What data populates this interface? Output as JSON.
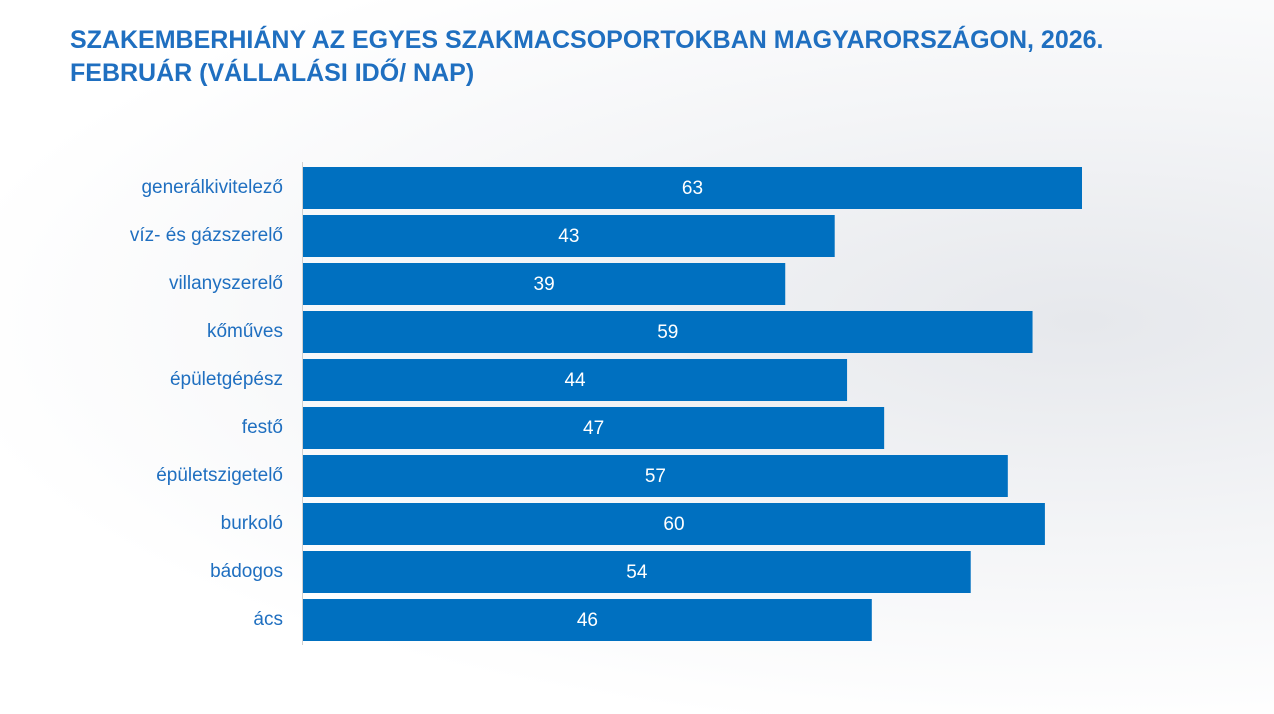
{
  "chart_data": {
    "type": "bar",
    "orientation": "horizontal",
    "title": "SZAKEMBERHIÁNY AZ EGYES SZAKMACSOPORTOKBAN MAGYARORSZÁGON, 2026. FEBRUÁR (VÁLLALÁSI IDŐ/ NAP)",
    "categories": [
      "generálkivitelező",
      "víz- és gázszerelő",
      "villanyszerelő",
      "kőműves",
      "épületgépész",
      "festő",
      "épületszigetelő",
      "burkoló",
      "bádogos",
      "ács"
    ],
    "values": [
      63,
      43,
      39,
      59,
      44,
      47,
      57,
      60,
      54,
      46
    ],
    "color": "#0070c0"
  }
}
